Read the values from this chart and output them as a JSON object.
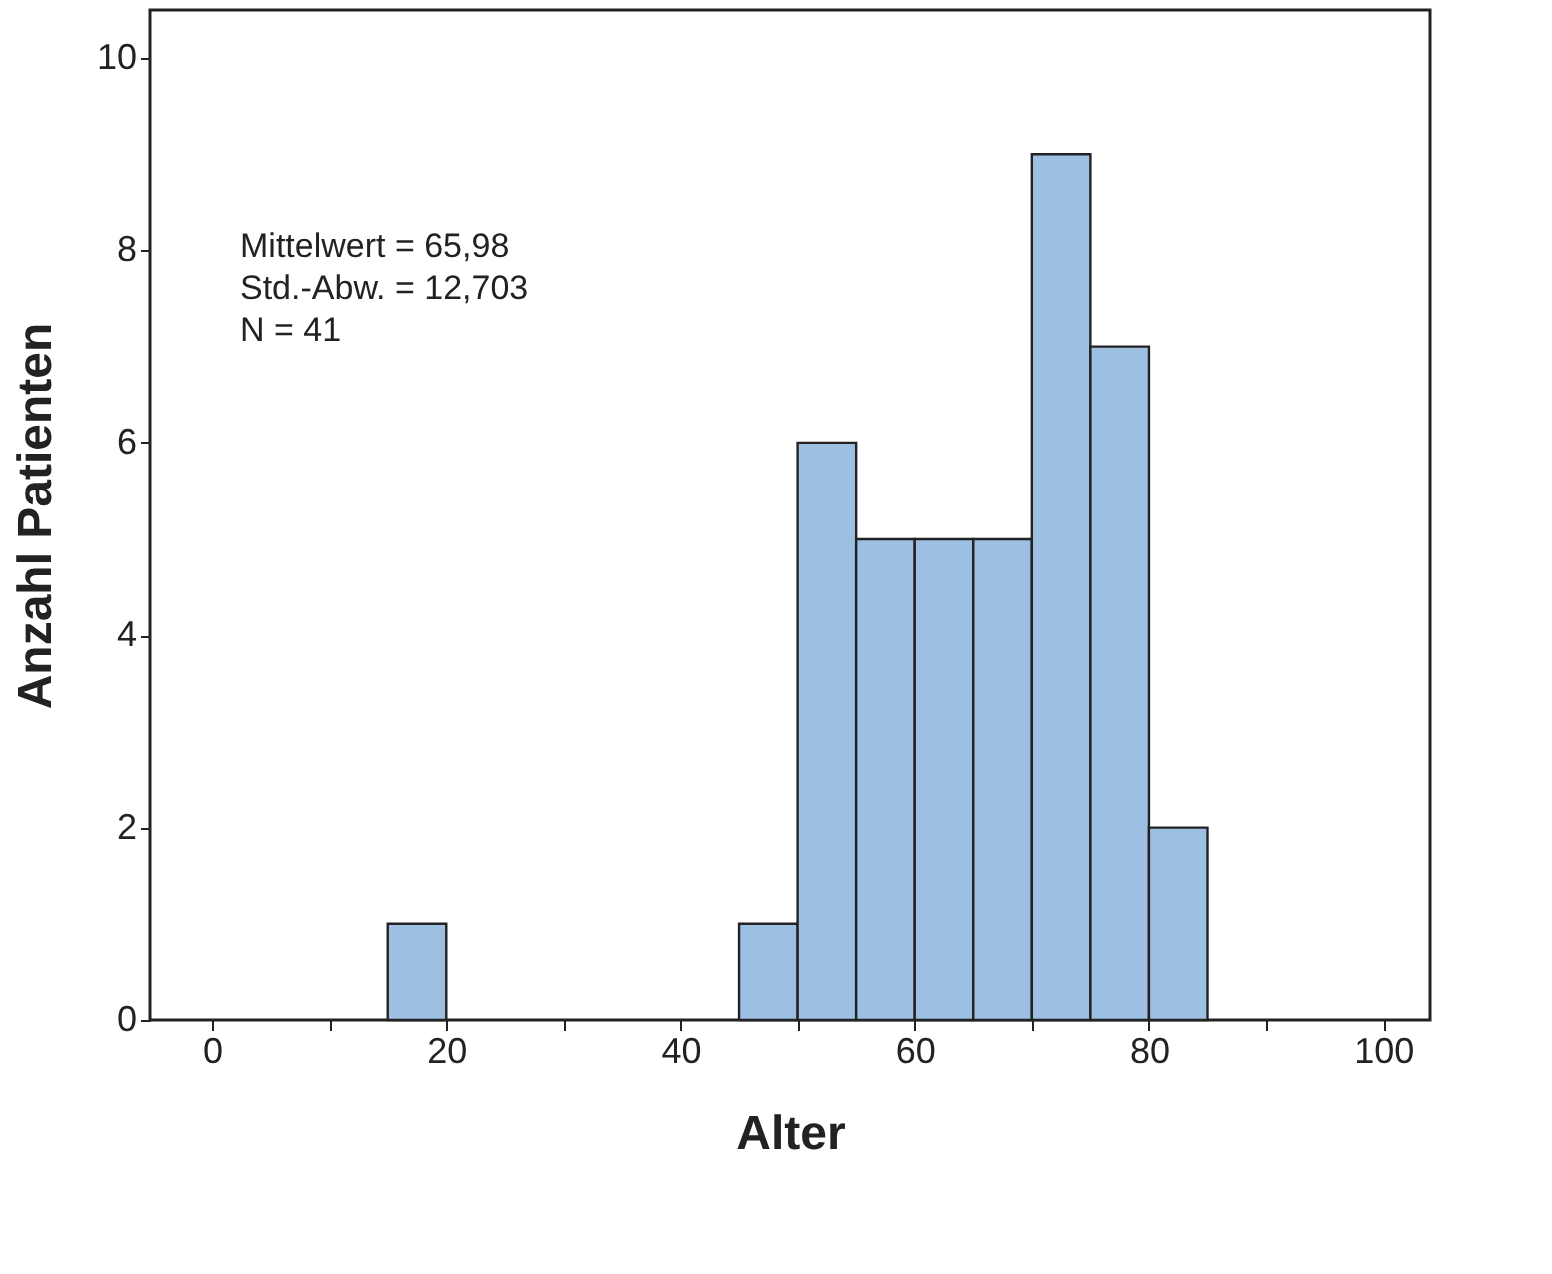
{
  "chart_data": {
    "type": "histogram",
    "xlabel": "Alter",
    "ylabel": "Anzahl Patienten",
    "bins": [
      15,
      20,
      25,
      30,
      35,
      40,
      45,
      50,
      55,
      60,
      65,
      70,
      75,
      80,
      85
    ],
    "values": [
      1,
      0,
      0,
      0,
      0,
      0,
      1,
      6,
      5,
      5,
      5,
      9,
      7,
      2
    ],
    "color": "#9dbfe2",
    "xlim": [
      -5.3,
      104
    ],
    "ylim": [
      0,
      10.5
    ],
    "xticks": [
      0,
      {
        "value": 10,
        "label": null
      },
      20,
      {
        "value": 30,
        "label": null
      },
      40,
      {
        "value": 50,
        "label": null
      },
      60,
      {
        "value": 70,
        "label": null
      },
      80,
      {
        "value": 90,
        "label": null
      },
      100
    ],
    "yticks": [
      0,
      2,
      4,
      6,
      8,
      10
    ],
    "grid": false,
    "annotations": [
      "Mittelwert = 65,98",
      "Std.-Abw. = 12,703",
      "N = 41"
    ]
  }
}
